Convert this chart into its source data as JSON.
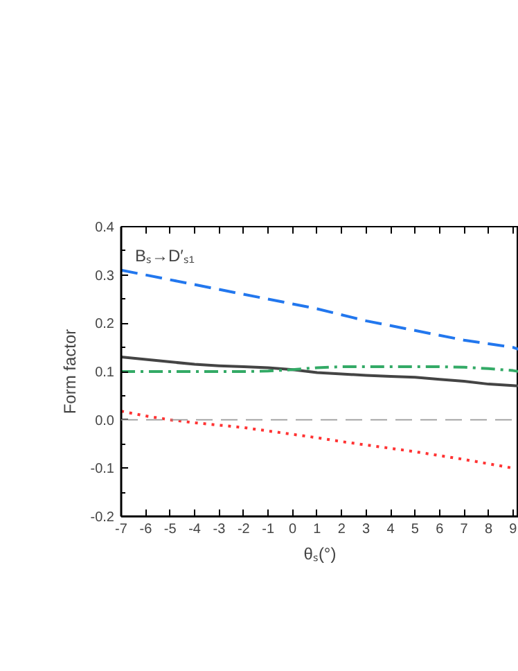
{
  "chart_data": {
    "type": "line",
    "xlabel": "θₛ(°)",
    "ylabel": "Form factor",
    "annotations": [
      {
        "text": "Bₛ→D′ₛ₁"
      }
    ],
    "xlim": [
      -7,
      9.23
    ],
    "ylim": [
      -0.2,
      0.4
    ],
    "xticks": [
      -7,
      -6,
      -5,
      -4,
      -3,
      -2,
      -1,
      0,
      1,
      2,
      3,
      4,
      5,
      6,
      7,
      8,
      9
    ],
    "yticks": [
      {
        "value": -0.2,
        "label": "-0.2"
      },
      {
        "value": -0.1,
        "label": "-0.1"
      },
      {
        "value": 0,
        "label": "0.0"
      },
      {
        "value": 0.1,
        "label": "0.1"
      },
      {
        "value": 0.2,
        "label": "0.2"
      },
      {
        "value": 0.3,
        "label": "0.3"
      },
      {
        "value": 0.4,
        "label": "0.4"
      }
    ],
    "grid": false,
    "ref_lines": [
      {
        "axis": "y",
        "value": 0,
        "color": "#999999",
        "line_style": "dashed"
      }
    ],
    "series": [
      {
        "color": "#444444",
        "line_style": "solid",
        "x": [
          -7,
          -6,
          -5,
          -4,
          -3,
          -2,
          -1,
          0,
          1,
          2,
          3,
          4,
          5,
          6,
          7,
          8,
          9,
          9.23
        ],
        "values": [
          0.13,
          0.125,
          0.12,
          0.115,
          0.112,
          0.11,
          0.108,
          0.104,
          0.098,
          0.095,
          0.092,
          0.09,
          0.088,
          0.084,
          0.08,
          0.074,
          0.071,
          0.07
        ]
      },
      {
        "color": "#ff3333",
        "line_style": "dotted",
        "x": [
          -7,
          -6,
          -5,
          -4,
          -3,
          -2,
          -1,
          0,
          1,
          2,
          3,
          4,
          5,
          6,
          7,
          8,
          9
        ],
        "values": [
          0.018,
          0.008,
          0.0,
          -0.006,
          -0.011,
          -0.016,
          -0.023,
          -0.03,
          -0.037,
          -0.045,
          -0.052,
          -0.059,
          -0.066,
          -0.074,
          -0.082,
          -0.091,
          -0.1
        ]
      },
      {
        "color": "#2277ee",
        "line_style": "dashed",
        "x": [
          -7,
          -5,
          -3,
          -1,
          0,
          1,
          3,
          5,
          7,
          9,
          9.23
        ],
        "values": [
          0.31,
          0.29,
          0.27,
          0.25,
          0.24,
          0.23,
          0.205,
          0.185,
          0.165,
          0.15,
          0.146
        ]
      },
      {
        "color": "#33aa66",
        "line_style": "dashdot",
        "x": [
          -7,
          -5,
          -3,
          -2,
          -1,
          0,
          1,
          2,
          4,
          6,
          7,
          8,
          9,
          9.23
        ],
        "values": [
          0.1,
          0.1,
          0.1,
          0.1,
          0.101,
          0.104,
          0.108,
          0.11,
          0.11,
          0.11,
          0.109,
          0.106,
          0.102,
          0.1
        ]
      }
    ]
  }
}
